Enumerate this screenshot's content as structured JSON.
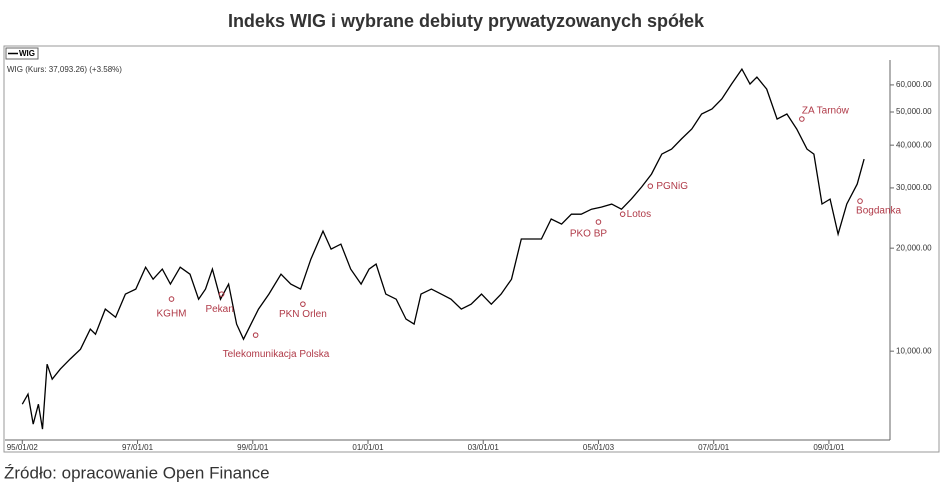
{
  "chart_data": {
    "type": "line",
    "title": "Indeks WIG i wybrane debiuty prywatyzowanych spółek",
    "subtitle": "WIG (Kurs: 37,093.26) (+3.58%)",
    "source": "Źródło: opracowanie Open Finance",
    "log_scale": true,
    "grid": false,
    "annotation_color": "#b03a48",
    "xlim": [
      1994.7,
      2010.06
    ],
    "ylim": [
      5500,
      70000
    ],
    "xticks": [
      {
        "value": 1995.0,
        "label": "95/01/02"
      },
      {
        "value": 1997.0,
        "label": "97/01/01"
      },
      {
        "value": 1999.0,
        "label": "99/01/01"
      },
      {
        "value": 2001.0,
        "label": "01/01/01"
      },
      {
        "value": 2003.0,
        "label": "03/01/01"
      },
      {
        "value": 2005.0,
        "label": "05/01/03"
      },
      {
        "value": 2007.0,
        "label": "07/01/01"
      },
      {
        "value": 2009.0,
        "label": "09/01/01"
      }
    ],
    "yticks": [
      {
        "value": 10000,
        "label": "10,000.00"
      },
      {
        "value": 20000,
        "label": "20,000.00"
      },
      {
        "value": 30000,
        "label": "30,000.00"
      },
      {
        "value": 40000,
        "label": "40,000.00"
      },
      {
        "value": 50000,
        "label": "50,000.00"
      },
      {
        "value": 60000,
        "label": "60,000.00"
      }
    ],
    "series": [
      {
        "name": "WIG",
        "color": "#000000",
        "x": [
          1995.0,
          1995.1,
          1995.19,
          1995.28,
          1995.35,
          1995.43,
          1995.52,
          1995.66,
          1995.83,
          1996.01,
          1996.18,
          1996.27,
          1996.44,
          1996.62,
          1996.79,
          1996.97,
          1997.14,
          1997.27,
          1997.43,
          1997.57,
          1997.74,
          1997.91,
          1998.06,
          1998.18,
          1998.3,
          1998.44,
          1998.58,
          1998.72,
          1998.84,
          1998.97,
          1999.1,
          1999.28,
          1999.49,
          1999.66,
          1999.83,
          2000.01,
          2000.22,
          2000.36,
          2000.53,
          2000.7,
          2000.88,
          2001.02,
          2001.14,
          2001.31,
          2001.49,
          2001.66,
          2001.8,
          2001.92,
          2002.1,
          2002.27,
          2002.44,
          2002.62,
          2002.79,
          2002.97,
          2003.14,
          2003.31,
          2003.49,
          2003.66,
          2003.83,
          2004.01,
          2004.18,
          2004.36,
          2004.53,
          2004.7,
          2004.88,
          2005.05,
          2005.23,
          2005.4,
          2005.57,
          2005.75,
          2005.92,
          2006.1,
          2006.27,
          2006.44,
          2006.62,
          2006.79,
          2006.97,
          2007.14,
          2007.31,
          2007.49,
          2007.63,
          2007.75,
          2007.92,
          2008.1,
          2008.27,
          2008.44,
          2008.62,
          2008.74,
          2008.88,
          2009.02,
          2009.16,
          2009.31,
          2009.49,
          2009.61
        ],
        "values": [
          7000,
          7490,
          6120,
          7000,
          5920,
          9160,
          8280,
          8860,
          9480,
          10130,
          11600,
          11210,
          13270,
          12570,
          14680,
          15180,
          17600,
          16230,
          17370,
          15700,
          17600,
          16790,
          14190,
          15180,
          17370,
          14190,
          15700,
          12000,
          10840,
          12000,
          13270,
          14680,
          16790,
          15700,
          15180,
          18580,
          22430,
          19870,
          20560,
          17370,
          15700,
          17370,
          17960,
          14680,
          14190,
          12410,
          12000,
          14680,
          15180,
          14680,
          14190,
          13270,
          13720,
          14680,
          13720,
          14680,
          16230,
          21270,
          21270,
          21270,
          24330,
          23520,
          25140,
          25140,
          26000,
          26370,
          26900,
          26000,
          27830,
          30200,
          32930,
          37670,
          38960,
          41690,
          44590,
          49320,
          51010,
          54560,
          60360,
          66750,
          60360,
          63250,
          58350,
          47680,
          49320,
          44590,
          38960,
          37670,
          26930,
          27830,
          21980,
          26930,
          30770,
          36410
        ]
      }
    ],
    "annotations": [
      {
        "label": "KGHM",
        "x": 1997.59,
        "y": 14200
      },
      {
        "label": "Pekan",
        "x": 1998.46,
        "y": 14680
      },
      {
        "label": "Telekomunikacja Polska",
        "x": 1999.05,
        "y": 11140
      },
      {
        "label": "PKN Orlen",
        "x": 1999.87,
        "y": 13720
      },
      {
        "label": "PKO BP",
        "x": 2005.0,
        "y": 23850
      },
      {
        "label": "Lotos",
        "x": 2005.42,
        "y": 25140
      },
      {
        "label": "PGNiG",
        "x": 2005.9,
        "y": 30360
      },
      {
        "label": "ZA Tarnów",
        "x": 2008.53,
        "y": 47700
      },
      {
        "label": "Bogdanka",
        "x": 2009.54,
        "y": 27450
      }
    ]
  }
}
